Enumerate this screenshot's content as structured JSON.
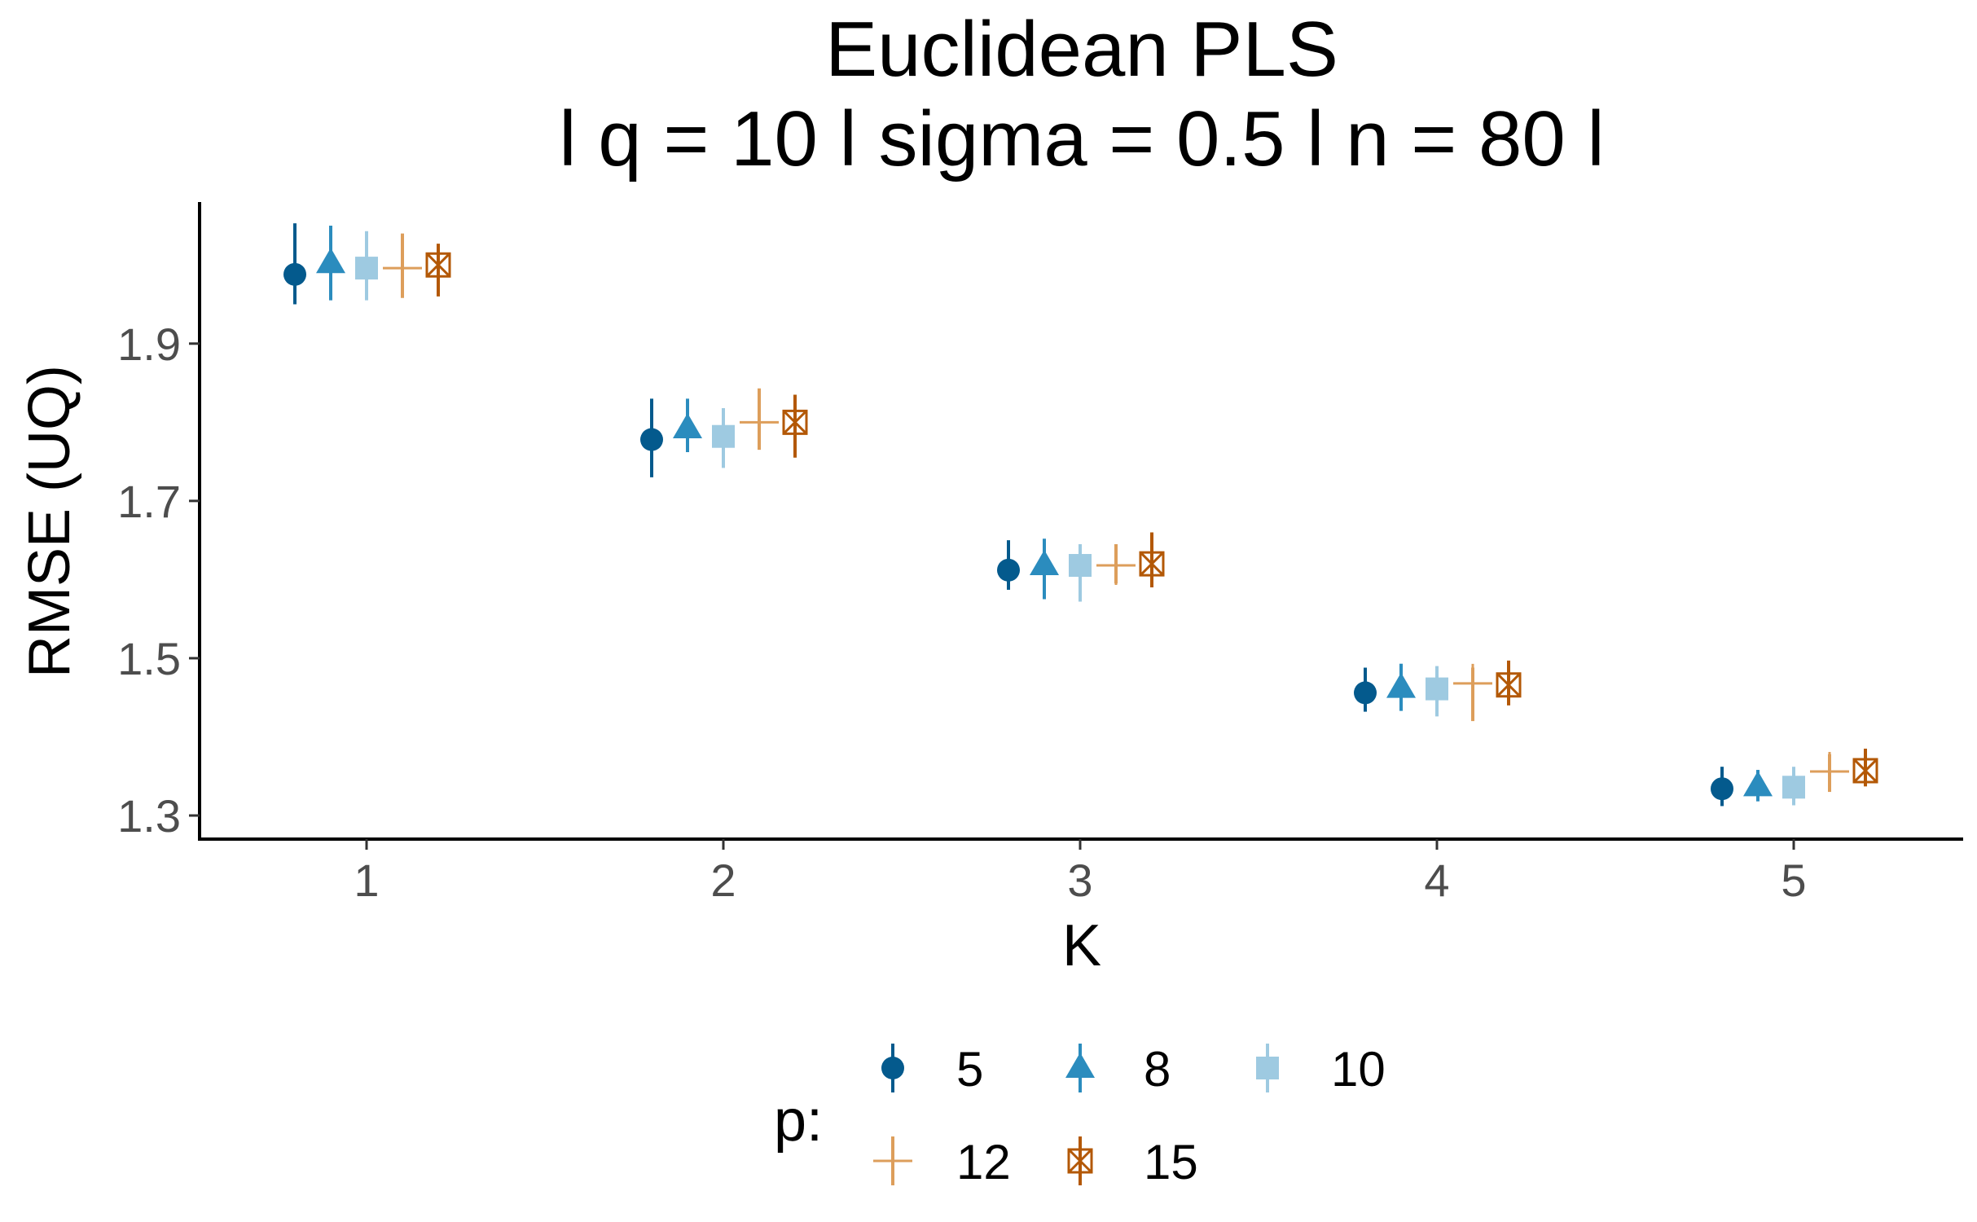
{
  "chart_data": {
    "type": "scatter",
    "title_line1": "Euclidean PLS",
    "title_line2": "l q = 10 l sigma = 0.5 l n = 80 l",
    "xlabel": "K",
    "ylabel": "RMSE (UQ)",
    "x_ticks": [
      "1",
      "2",
      "3",
      "4",
      "5"
    ],
    "y_ticks": [
      "1.3",
      "1.5",
      "1.7",
      "1.9"
    ],
    "ylim": [
      1.27,
      2.08
    ],
    "grid": false,
    "legend_title": "p:",
    "legend_position": "bottom",
    "series": [
      {
        "name": "5",
        "shape": "circle",
        "color": "#045a8d",
        "points": [
          {
            "K": 1,
            "y": 1.988,
            "lo": 1.95,
            "hi": 2.053
          },
          {
            "K": 2,
            "y": 1.778,
            "lo": 1.73,
            "hi": 1.83
          },
          {
            "K": 3,
            "y": 1.612,
            "lo": 1.587,
            "hi": 1.65
          },
          {
            "K": 4,
            "y": 1.456,
            "lo": 1.432,
            "hi": 1.488
          },
          {
            "K": 5,
            "y": 1.334,
            "lo": 1.312,
            "hi": 1.362
          }
        ]
      },
      {
        "name": "8",
        "shape": "triangle",
        "color": "#2b8cbe",
        "points": [
          {
            "K": 1,
            "y": 2.002,
            "lo": 1.955,
            "hi": 2.05
          },
          {
            "K": 2,
            "y": 1.792,
            "lo": 1.762,
            "hi": 1.83
          },
          {
            "K": 3,
            "y": 1.618,
            "lo": 1.575,
            "hi": 1.652
          },
          {
            "K": 4,
            "y": 1.462,
            "lo": 1.433,
            "hi": 1.493
          },
          {
            "K": 5,
            "y": 1.337,
            "lo": 1.318,
            "hi": 1.358
          }
        ]
      },
      {
        "name": "10",
        "shape": "square",
        "color": "#9ecae1",
        "points": [
          {
            "K": 1,
            "y": 1.996,
            "lo": 1.955,
            "hi": 2.043
          },
          {
            "K": 2,
            "y": 1.782,
            "lo": 1.742,
            "hi": 1.818
          },
          {
            "K": 3,
            "y": 1.618,
            "lo": 1.572,
            "hi": 1.645
          },
          {
            "K": 4,
            "y": 1.461,
            "lo": 1.426,
            "hi": 1.49
          },
          {
            "K": 5,
            "y": 1.336,
            "lo": 1.313,
            "hi": 1.362
          }
        ]
      },
      {
        "name": "12",
        "shape": "plus",
        "color": "#dd9e5b",
        "points": [
          {
            "K": 1,
            "y": 1.996,
            "lo": 1.958,
            "hi": 2.04
          },
          {
            "K": 2,
            "y": 1.8,
            "lo": 1.765,
            "hi": 1.843
          },
          {
            "K": 3,
            "y": 1.618,
            "lo": 1.595,
            "hi": 1.645
          },
          {
            "K": 4,
            "y": 1.468,
            "lo": 1.42,
            "hi": 1.488
          },
          {
            "K": 5,
            "y": 1.356,
            "lo": 1.33,
            "hi": 1.378
          }
        ]
      },
      {
        "name": "15",
        "shape": "boxx",
        "color": "#b35806",
        "points": [
          {
            "K": 1,
            "y": 2.0,
            "lo": 1.96,
            "hi": 2.027
          },
          {
            "K": 2,
            "y": 1.8,
            "lo": 1.755,
            "hi": 1.835
          },
          {
            "K": 3,
            "y": 1.62,
            "lo": 1.59,
            "hi": 1.66
          },
          {
            "K": 4,
            "y": 1.466,
            "lo": 1.44,
            "hi": 1.497
          },
          {
            "K": 5,
            "y": 1.357,
            "lo": 1.337,
            "hi": 1.385
          }
        ]
      }
    ]
  }
}
